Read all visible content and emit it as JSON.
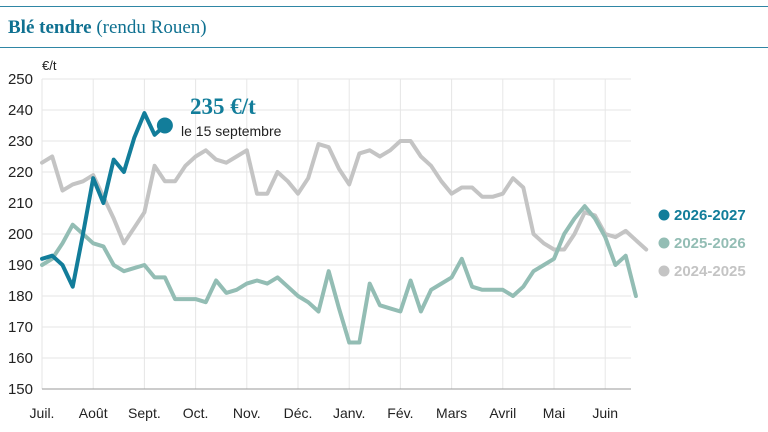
{
  "header": {
    "title_bold": "Blé tendre",
    "title_rest": "(rendu Rouen)"
  },
  "chart_data": {
    "type": "line",
    "unit_label": "€/t",
    "ylim": [
      150,
      250
    ],
    "yticks": [
      150,
      160,
      170,
      180,
      190,
      200,
      210,
      220,
      230,
      240,
      250
    ],
    "categories": [
      "Juil.",
      "Août",
      "Sept.",
      "Oct.",
      "Nov.",
      "Déc.",
      "Janv.",
      "Fév.",
      "Mars",
      "Avril",
      "Mai",
      "Juin"
    ],
    "grid": true,
    "legend_position": "right",
    "series": [
      {
        "name": "2024-2025",
        "color": "#c4c4c4",
        "points": [
          [
            0,
            223
          ],
          [
            0.2,
            225
          ],
          [
            0.4,
            214
          ],
          [
            0.6,
            216
          ],
          [
            0.8,
            217
          ],
          [
            1.0,
            219
          ],
          [
            1.2,
            212
          ],
          [
            1.4,
            205
          ],
          [
            1.6,
            197
          ],
          [
            1.8,
            202
          ],
          [
            2.0,
            207
          ],
          [
            2.2,
            222
          ],
          [
            2.4,
            217
          ],
          [
            2.6,
            217
          ],
          [
            2.8,
            222
          ],
          [
            3.0,
            225
          ],
          [
            3.2,
            227
          ],
          [
            3.4,
            224
          ],
          [
            3.6,
            223
          ],
          [
            3.8,
            225
          ],
          [
            4.0,
            227
          ],
          [
            4.2,
            213
          ],
          [
            4.4,
            213
          ],
          [
            4.6,
            220
          ],
          [
            4.8,
            217
          ],
          [
            5.0,
            213
          ],
          [
            5.2,
            218
          ],
          [
            5.4,
            229
          ],
          [
            5.6,
            228
          ],
          [
            5.8,
            221
          ],
          [
            6.0,
            216
          ],
          [
            6.2,
            226
          ],
          [
            6.4,
            227
          ],
          [
            6.6,
            225
          ],
          [
            6.8,
            227
          ],
          [
            7.0,
            230
          ],
          [
            7.2,
            230
          ],
          [
            7.4,
            225
          ],
          [
            7.6,
            222
          ],
          [
            7.8,
            217
          ],
          [
            8.0,
            213
          ],
          [
            8.2,
            215
          ],
          [
            8.4,
            215
          ],
          [
            8.6,
            212
          ],
          [
            8.8,
            212
          ],
          [
            9.0,
            213
          ],
          [
            9.2,
            218
          ],
          [
            9.4,
            215
          ],
          [
            9.6,
            200
          ],
          [
            9.8,
            197
          ],
          [
            10.0,
            195
          ],
          [
            10.2,
            195
          ],
          [
            10.4,
            200
          ],
          [
            10.6,
            207
          ],
          [
            10.8,
            206
          ],
          [
            11.0,
            200
          ],
          [
            11.2,
            199
          ],
          [
            11.4,
            201
          ],
          [
            11.6,
            198
          ],
          [
            11.8,
            195
          ]
        ]
      },
      {
        "name": "2025-2026",
        "color": "#93bdb4",
        "points": [
          [
            0,
            190
          ],
          [
            0.2,
            192
          ],
          [
            0.4,
            197
          ],
          [
            0.6,
            203
          ],
          [
            0.8,
            200
          ],
          [
            1.0,
            197
          ],
          [
            1.2,
            196
          ],
          [
            1.4,
            190
          ],
          [
            1.6,
            188
          ],
          [
            1.8,
            189
          ],
          [
            2.0,
            190
          ],
          [
            2.2,
            186
          ],
          [
            2.4,
            186
          ],
          [
            2.6,
            179
          ],
          [
            2.8,
            179
          ],
          [
            3.0,
            179
          ],
          [
            3.2,
            178
          ],
          [
            3.4,
            185
          ],
          [
            3.6,
            181
          ],
          [
            3.8,
            182
          ],
          [
            4.0,
            184
          ],
          [
            4.2,
            185
          ],
          [
            4.4,
            184
          ],
          [
            4.6,
            186
          ],
          [
            4.8,
            183
          ],
          [
            5.0,
            180
          ],
          [
            5.2,
            178
          ],
          [
            5.4,
            175
          ],
          [
            5.6,
            188
          ],
          [
            5.8,
            176
          ],
          [
            6.0,
            165
          ],
          [
            6.2,
            165
          ],
          [
            6.4,
            184
          ],
          [
            6.6,
            177
          ],
          [
            6.8,
            176
          ],
          [
            7.0,
            175
          ],
          [
            7.2,
            185
          ],
          [
            7.4,
            175
          ],
          [
            7.6,
            182
          ],
          [
            7.8,
            184
          ],
          [
            8.0,
            186
          ],
          [
            8.2,
            192
          ],
          [
            8.4,
            183
          ],
          [
            8.6,
            182
          ],
          [
            8.8,
            182
          ],
          [
            9.0,
            182
          ],
          [
            9.2,
            180
          ],
          [
            9.4,
            183
          ],
          [
            9.6,
            188
          ],
          [
            9.8,
            190
          ],
          [
            10.0,
            192
          ],
          [
            10.2,
            200
          ],
          [
            10.4,
            205
          ],
          [
            10.6,
            209
          ],
          [
            10.8,
            205
          ],
          [
            11.0,
            199
          ],
          [
            11.2,
            190
          ],
          [
            11.4,
            193
          ],
          [
            11.6,
            180
          ]
        ]
      },
      {
        "name": "2026-2027",
        "color": "#127d9a",
        "points": [
          [
            0,
            192
          ],
          [
            0.2,
            193
          ],
          [
            0.4,
            190
          ],
          [
            0.6,
            183
          ],
          [
            0.8,
            200
          ],
          [
            1.0,
            218
          ],
          [
            1.2,
            210
          ],
          [
            1.4,
            224
          ],
          [
            1.6,
            220
          ],
          [
            1.8,
            231
          ],
          [
            2.0,
            239
          ],
          [
            2.2,
            232
          ],
          [
            2.4,
            235
          ]
        ]
      }
    ],
    "annotation": {
      "value": "235 €/t",
      "date": "le 15 septembre"
    }
  }
}
